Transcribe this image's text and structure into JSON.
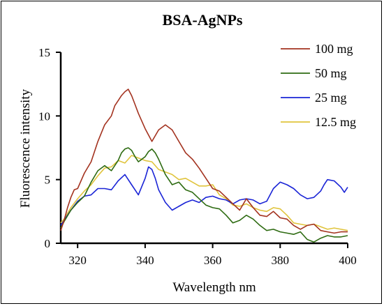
{
  "chart_data": {
    "type": "line",
    "title": "BSA-AgNPs",
    "xlabel": "Wavelength nm",
    "ylabel": "Fluorescence intensity",
    "xlim": [
      315,
      400
    ],
    "ylim": [
      0,
      15
    ],
    "x_ticks": [
      320,
      340,
      360,
      380,
      400
    ],
    "y_ticks": [
      0,
      5,
      10,
      15
    ],
    "grid": false,
    "legend_position": "top-right",
    "series": [
      {
        "name": "100 mg",
        "color": "#a3321f",
        "x": [
          315,
          316,
          317,
          318,
          319,
          320,
          322,
          324,
          326,
          328,
          330,
          331,
          332,
          333,
          334,
          335,
          336,
          337,
          338,
          340,
          342,
          344,
          346,
          348,
          350,
          352,
          354,
          356,
          358,
          360,
          362,
          364,
          366,
          368,
          370,
          372,
          374,
          376,
          378,
          380,
          382,
          384,
          386,
          388,
          390,
          392,
          394,
          396,
          398,
          400
        ],
        "y": [
          1.0,
          1.8,
          2.8,
          3.6,
          4.2,
          4.3,
          5.5,
          6.4,
          8.0,
          9.3,
          10.0,
          10.8,
          11.2,
          11.6,
          11.9,
          12.1,
          11.6,
          10.9,
          10.2,
          9.0,
          8.0,
          8.9,
          9.3,
          8.9,
          8.0,
          7.1,
          6.6,
          5.9,
          5.1,
          4.3,
          4.1,
          3.6,
          3.1,
          2.6,
          3.5,
          2.8,
          2.2,
          2.1,
          2.5,
          2.0,
          1.9,
          1.4,
          1.1,
          1.4,
          1.5,
          1.0,
          0.9,
          0.8,
          0.9,
          0.9
        ]
      },
      {
        "name": "50 mg",
        "color": "#2e6b12",
        "x": [
          315,
          316,
          318,
          320,
          322,
          324,
          326,
          328,
          330,
          332,
          333,
          334,
          335,
          336,
          337,
          338,
          340,
          341,
          342,
          343,
          344,
          346,
          348,
          350,
          352,
          354,
          356,
          358,
          360,
          362,
          364,
          366,
          368,
          370,
          372,
          374,
          376,
          378,
          380,
          382,
          384,
          386,
          388,
          390,
          392,
          394,
          396,
          398,
          400
        ],
        "y": [
          1.2,
          1.7,
          2.6,
          3.2,
          3.7,
          4.8,
          5.7,
          6.1,
          5.7,
          6.5,
          7.1,
          7.4,
          7.5,
          7.3,
          6.8,
          6.4,
          6.8,
          7.2,
          7.4,
          7.1,
          6.6,
          5.4,
          4.6,
          4.8,
          4.2,
          4.0,
          3.5,
          3.0,
          2.8,
          2.7,
          2.2,
          1.6,
          1.8,
          2.2,
          1.9,
          1.4,
          1.0,
          1.1,
          0.9,
          0.8,
          0.7,
          0.9,
          0.3,
          0.1,
          0.4,
          0.6,
          0.5,
          0.5,
          0.6
        ]
      },
      {
        "name": "25 mg",
        "color": "#1a24d6",
        "x": [
          315,
          316,
          318,
          320,
          322,
          324,
          326,
          328,
          330,
          332,
          334,
          336,
          338,
          340,
          341,
          342,
          343,
          344,
          346,
          348,
          350,
          352,
          354,
          356,
          358,
          360,
          362,
          364,
          366,
          368,
          370,
          372,
          374,
          376,
          378,
          380,
          382,
          384,
          386,
          388,
          390,
          392,
          393,
          394,
          396,
          398,
          399,
          400
        ],
        "y": [
          1.4,
          1.8,
          2.6,
          3.3,
          3.7,
          3.8,
          4.3,
          4.3,
          4.2,
          4.9,
          5.4,
          4.6,
          3.8,
          5.1,
          6.0,
          5.8,
          5.1,
          4.2,
          3.2,
          2.6,
          2.9,
          3.2,
          3.4,
          3.2,
          3.6,
          3.7,
          3.5,
          3.4,
          3.1,
          3.4,
          3.5,
          3.4,
          3.1,
          3.3,
          4.3,
          4.8,
          4.6,
          4.3,
          3.8,
          3.5,
          3.6,
          4.1,
          4.6,
          5.0,
          4.9,
          4.4,
          4.0,
          4.4
        ]
      },
      {
        "name": "12.5 mg",
        "color": "#e0c43c",
        "x": [
          315,
          316,
          318,
          320,
          322,
          324,
          326,
          328,
          330,
          332,
          334,
          336,
          338,
          340,
          342,
          344,
          346,
          348,
          350,
          352,
          354,
          356,
          358,
          360,
          362,
          364,
          366,
          368,
          370,
          372,
          374,
          376,
          378,
          380,
          382,
          384,
          386,
          388,
          390,
          392,
          394,
          396,
          398,
          400
        ],
        "y": [
          1.6,
          1.9,
          2.8,
          3.5,
          4.1,
          4.6,
          5.3,
          5.9,
          6.0,
          6.5,
          6.3,
          6.9,
          6.7,
          6.5,
          6.4,
          5.8,
          5.6,
          5.4,
          5.0,
          5.1,
          4.8,
          4.5,
          4.5,
          4.6,
          3.8,
          3.5,
          3.0,
          2.9,
          3.1,
          2.8,
          2.6,
          2.5,
          2.8,
          2.7,
          2.2,
          1.6,
          1.5,
          1.4,
          1.5,
          1.3,
          1.1,
          1.2,
          1.1,
          1.0
        ]
      }
    ]
  }
}
